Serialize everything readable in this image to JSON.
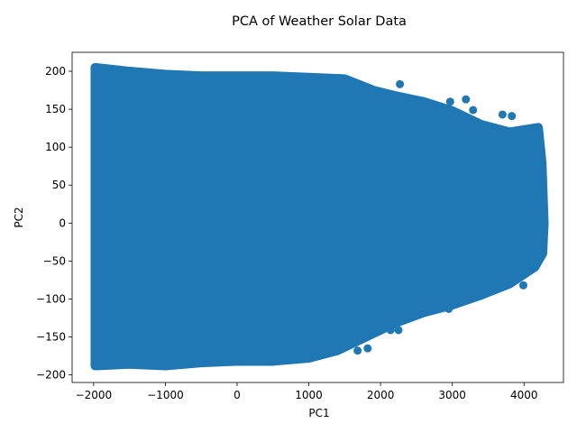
{
  "chart_data": {
    "type": "scatter",
    "title": "PCA of Weather Solar Data",
    "xlabel": "PC1",
    "ylabel": "PC2",
    "xlim": [
      -2300,
      4550
    ],
    "ylim": [
      -210,
      225
    ],
    "xticks": [
      -2000,
      -1000,
      0,
      1000,
      2000,
      3000,
      4000
    ],
    "yticks": [
      -200,
      -150,
      -100,
      -50,
      0,
      50,
      100,
      150,
      200
    ],
    "grid": false,
    "marker_color": "#1f77b4",
    "series": [
      {
        "points_main_cloud_outline": [
          [
            -1980,
            205
          ],
          [
            -1500,
            200
          ],
          [
            -1000,
            196
          ],
          [
            -500,
            194
          ],
          [
            0,
            194
          ],
          [
            500,
            194
          ],
          [
            1000,
            192
          ],
          [
            1500,
            190
          ],
          [
            1900,
            175
          ],
          [
            2200,
            168
          ],
          [
            2600,
            160
          ],
          [
            3000,
            148
          ],
          [
            3400,
            130
          ],
          [
            3800,
            120
          ],
          [
            4200,
            126
          ],
          [
            4250,
            80
          ],
          [
            4280,
            0
          ],
          [
            4260,
            -40
          ],
          [
            4150,
            -58
          ],
          [
            3800,
            -80
          ],
          [
            3400,
            -95
          ],
          [
            3000,
            -108
          ],
          [
            2600,
            -118
          ],
          [
            2200,
            -132
          ],
          [
            1800,
            -150
          ],
          [
            1400,
            -168
          ],
          [
            1000,
            -178
          ],
          [
            500,
            -182
          ],
          [
            0,
            -182
          ],
          [
            -500,
            -184
          ],
          [
            -1000,
            -188
          ],
          [
            -1500,
            -186
          ],
          [
            -1980,
            -188
          ]
        ],
        "points_outliers": [
          [
            2270,
            183
          ],
          [
            2970,
            160
          ],
          [
            3190,
            163
          ],
          [
            3290,
            149
          ],
          [
            3700,
            143
          ],
          [
            3830,
            141
          ],
          [
            3990,
            -82
          ],
          [
            2950,
            -113
          ],
          [
            2140,
            -141
          ],
          [
            2250,
            -141
          ],
          [
            1820,
            -165
          ],
          [
            1680,
            -168
          ]
        ]
      }
    ]
  }
}
